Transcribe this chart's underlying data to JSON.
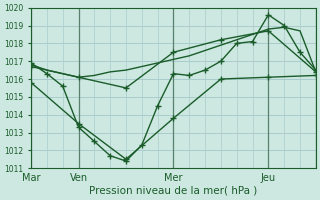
{
  "xlabel": "Pression niveau de la mer( hPa )",
  "bg_color": "#cce8e0",
  "grid_color": "#aacccc",
  "line_color": "#1a5c2a",
  "tick_color": "#1a5c2a",
  "axis_label_color": "#1a5c2a",
  "ylim": [
    1011,
    1020
  ],
  "yticks": [
    1011,
    1012,
    1013,
    1014,
    1015,
    1016,
    1017,
    1018,
    1019,
    1020
  ],
  "vline_positions": [
    0,
    24,
    72,
    120,
    144
  ],
  "xtick_positions": [
    0,
    24,
    72,
    120,
    144
  ],
  "xtick_labels": [
    "Mar",
    "Ven",
    "Mer",
    "Jeu",
    ""
  ],
  "xlim": [
    0,
    144
  ],
  "series_jagged": {
    "x": [
      0,
      8,
      16,
      24,
      32,
      40,
      48,
      56,
      64,
      72,
      80,
      88,
      96,
      104,
      112,
      120,
      128,
      136,
      144
    ],
    "y": [
      1016.9,
      1016.3,
      1015.6,
      1013.3,
      1012.5,
      1011.7,
      1011.4,
      1012.3,
      1014.5,
      1016.3,
      1016.2,
      1016.5,
      1017.0,
      1018.0,
      1018.1,
      1019.6,
      1019.0,
      1017.5,
      1016.5
    ]
  },
  "series_smooth_upper": {
    "x": [
      0,
      8,
      16,
      24,
      32,
      40,
      48,
      56,
      64,
      72,
      80,
      88,
      96,
      104,
      112,
      120,
      128,
      136,
      144
    ],
    "y": [
      1016.8,
      1016.5,
      1016.3,
      1016.1,
      1016.2,
      1016.4,
      1016.5,
      1016.7,
      1016.9,
      1017.1,
      1017.3,
      1017.6,
      1017.9,
      1018.2,
      1018.5,
      1018.8,
      1018.9,
      1018.7,
      1016.4
    ]
  },
  "series_medium": {
    "x": [
      0,
      24,
      48,
      72,
      96,
      120,
      144
    ],
    "y": [
      1016.7,
      1016.1,
      1015.5,
      1017.5,
      1018.2,
      1018.7,
      1016.4
    ]
  },
  "series_lower": {
    "x": [
      0,
      24,
      48,
      72,
      96,
      120,
      144
    ],
    "y": [
      1015.8,
      1013.5,
      1011.5,
      1013.8,
      1016.0,
      1016.1,
      1016.2
    ]
  }
}
